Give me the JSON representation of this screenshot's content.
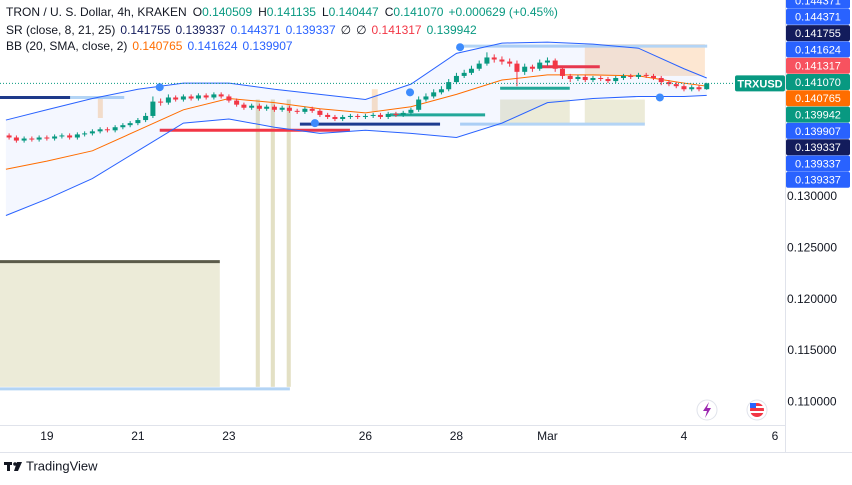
{
  "header": {
    "symbol": "TRON / U. S. Dollar, 4h, KRAKEN",
    "ohlc": [
      {
        "key": "O",
        "value": "0.140509"
      },
      {
        "key": "H",
        "value": "0.141135"
      },
      {
        "key": "L",
        "value": "0.140447"
      },
      {
        "key": "C",
        "value": "0.141070"
      }
    ],
    "change": "+0.000629 (+0.45%)",
    "value_color": "#089981"
  },
  "indicators": [
    {
      "name": "SR (close, 8, 21, 25)",
      "values": [
        {
          "text": "0.141755",
          "color": "#131c5c"
        },
        {
          "text": "0.139337",
          "color": "#131c5c"
        },
        {
          "text": "0.144371",
          "color": "#2962ff"
        },
        {
          "text": "0.139337",
          "color": "#2962ff"
        },
        {
          "text": "∅",
          "color": "#131722"
        },
        {
          "text": "∅",
          "color": "#131722"
        },
        {
          "text": "0.141317",
          "color": "#f23645"
        },
        {
          "text": "0.139942",
          "color": "#089981"
        }
      ]
    },
    {
      "name": "BB (20, SMA, close, 2)",
      "values": [
        {
          "text": "0.140765",
          "color": "#ff6d00"
        },
        {
          "text": "0.141624",
          "color": "#2962ff"
        },
        {
          "text": "0.139907",
          "color": "#2962ff"
        }
      ]
    }
  ],
  "price_tags": [
    {
      "label": "0.144371",
      "color": "#2962ff"
    },
    {
      "label": "0.144371",
      "color": "#2962ff"
    },
    {
      "label": "0.141755",
      "color": "#131c5c"
    },
    {
      "label": "0.141624",
      "color": "#2962ff"
    },
    {
      "label": "0.141317",
      "color": "#f7525f"
    },
    {
      "label": "0.141070",
      "color": "#089981"
    },
    {
      "label": "0.140765",
      "color": "#ff6d00"
    },
    {
      "label": "0.139942",
      "color": "#089981"
    },
    {
      "label": "0.139907",
      "color": "#2962ff"
    },
    {
      "label": "0.139337",
      "color": "#131c5c"
    },
    {
      "label": "0.139337",
      "color": "#2962ff"
    },
    {
      "label": "0.139337",
      "color": "#2962ff"
    }
  ],
  "footer": {
    "brand": "TradingView"
  },
  "chart_data": {
    "type": "candlestick",
    "symbol_label": "TRXUSD",
    "up_color": "#089981",
    "down_color": "#f23645",
    "xlim": [
      17.97,
      35.22
    ],
    "ylim": [
      0.10778,
      0.1492
    ],
    "xticks": [
      19,
      21,
      23,
      26,
      28,
      {
        "value": 30,
        "label": "Mar"
      },
      {
        "value": 33,
        "label": "4"
      },
      {
        "value": 35,
        "label": "6"
      }
    ],
    "yticks": [
      {
        "value": 0.13,
        "label": "0.130000"
      },
      {
        "value": 0.125,
        "label": "0.125000"
      },
      {
        "value": 0.12,
        "label": "0.120000"
      },
      {
        "value": 0.115,
        "label": "0.115000"
      },
      {
        "value": 0.11,
        "label": "0.110000"
      }
    ],
    "grid": false,
    "x": [
      18.17,
      18.33,
      18.5,
      18.67,
      18.83,
      19,
      19.17,
      19.33,
      19.5,
      19.67,
      19.83,
      20,
      20.17,
      20.33,
      20.5,
      20.67,
      20.83,
      21,
      21.17,
      21.33,
      21.5,
      21.67,
      21.83,
      22,
      22.17,
      22.33,
      22.5,
      22.67,
      22.83,
      23,
      23.17,
      23.33,
      23.5,
      23.67,
      23.83,
      24,
      24.17,
      24.33,
      24.5,
      24.67,
      24.83,
      25,
      25.17,
      25.33,
      25.5,
      25.67,
      25.83,
      26,
      26.17,
      26.33,
      26.5,
      26.67,
      26.83,
      27,
      27.17,
      27.33,
      27.5,
      27.67,
      27.83,
      28,
      28.17,
      28.33,
      28.5,
      28.67,
      28.83,
      29,
      29.17,
      29.33,
      29.5,
      29.67,
      29.83,
      30,
      30.17,
      30.33,
      30.5,
      30.67,
      30.83,
      31,
      31.17,
      31.33,
      31.5,
      31.67,
      31.83,
      32,
      32.17,
      32.33,
      32.5,
      32.67,
      32.83,
      33,
      33.17,
      33.33,
      33.5
    ],
    "ohlc": [
      [
        0.136,
        0.1362,
        0.1356,
        0.1358
      ],
      [
        0.1358,
        0.136,
        0.1353,
        0.1355
      ],
      [
        0.1355,
        0.1359,
        0.1353,
        0.1357
      ],
      [
        0.1357,
        0.1359,
        0.1354,
        0.1356
      ],
      [
        0.1356,
        0.136,
        0.1354,
        0.1358
      ],
      [
        0.1358,
        0.136,
        0.1355,
        0.1357
      ],
      [
        0.1357,
        0.1361,
        0.1355,
        0.1359
      ],
      [
        0.1359,
        0.1362,
        0.1357,
        0.136
      ],
      [
        0.136,
        0.1362,
        0.1356,
        0.1358
      ],
      [
        0.1358,
        0.1363,
        0.1356,
        0.1361
      ],
      [
        0.1361,
        0.1364,
        0.1359,
        0.1362
      ],
      [
        0.1362,
        0.1366,
        0.136,
        0.1364
      ],
      [
        0.1364,
        0.1368,
        0.1362,
        0.1366
      ],
      [
        0.1366,
        0.1368,
        0.1363,
        0.1365
      ],
      [
        0.1365,
        0.137,
        0.1363,
        0.1368
      ],
      [
        0.1368,
        0.1372,
        0.1366,
        0.137
      ],
      [
        0.137,
        0.1374,
        0.1368,
        0.1372
      ],
      [
        0.1372,
        0.1377,
        0.137,
        0.1375
      ],
      [
        0.1375,
        0.1382,
        0.1373,
        0.1379
      ],
      [
        0.1379,
        0.1398,
        0.1377,
        0.1393
      ],
      [
        0.1393,
        0.1396,
        0.1389,
        0.1392
      ],
      [
        0.1392,
        0.14,
        0.139,
        0.1397
      ],
      [
        0.1397,
        0.1399,
        0.1393,
        0.1395
      ],
      [
        0.1395,
        0.14,
        0.1393,
        0.1398
      ],
      [
        0.1398,
        0.14,
        0.1394,
        0.1396
      ],
      [
        0.1396,
        0.1401,
        0.1394,
        0.1399
      ],
      [
        0.1399,
        0.1401,
        0.1395,
        0.1397
      ],
      [
        0.1397,
        0.1402,
        0.1395,
        0.14
      ],
      [
        0.14,
        0.1402,
        0.1396,
        0.1398
      ],
      [
        0.1398,
        0.14,
        0.1392,
        0.1394
      ],
      [
        0.1394,
        0.1396,
        0.1388,
        0.139
      ],
      [
        0.139,
        0.1392,
        0.1385,
        0.1387
      ],
      [
        0.1387,
        0.1391,
        0.1385,
        0.1389
      ],
      [
        0.1389,
        0.1391,
        0.1384,
        0.1386
      ],
      [
        0.1386,
        0.139,
        0.1384,
        0.1388
      ],
      [
        0.1388,
        0.139,
        0.1383,
        0.1385
      ],
      [
        0.1385,
        0.1389,
        0.1383,
        0.1387
      ],
      [
        0.1387,
        0.1389,
        0.1382,
        0.1384
      ],
      [
        0.1384,
        0.1386,
        0.1381,
        0.1383
      ],
      [
        0.1383,
        0.1388,
        0.1381,
        0.1386
      ],
      [
        0.1386,
        0.1388,
        0.1382,
        0.1384
      ],
      [
        0.1384,
        0.1386,
        0.1378,
        0.138
      ],
      [
        0.138,
        0.1382,
        0.1376,
        0.1378
      ],
      [
        0.1378,
        0.138,
        0.1374,
        0.1376
      ],
      [
        0.1376,
        0.138,
        0.1374,
        0.1378
      ],
      [
        0.1378,
        0.1381,
        0.1376,
        0.1379
      ],
      [
        0.1379,
        0.1381,
        0.1376,
        0.1378
      ],
      [
        0.1378,
        0.1381,
        0.1376,
        0.1379
      ],
      [
        0.1379,
        0.1382,
        0.1377,
        0.138
      ],
      [
        0.138,
        0.1382,
        0.1376,
        0.1378
      ],
      [
        0.1378,
        0.1383,
        0.1376,
        0.1381
      ],
      [
        0.1381,
        0.1383,
        0.1378,
        0.138
      ],
      [
        0.138,
        0.1384,
        0.1378,
        0.1382
      ],
      [
        0.1382,
        0.1387,
        0.138,
        0.1385
      ],
      [
        0.1385,
        0.1398,
        0.1383,
        0.1395
      ],
      [
        0.1395,
        0.1401,
        0.1393,
        0.1398
      ],
      [
        0.1398,
        0.1405,
        0.1396,
        0.1402
      ],
      [
        0.1402,
        0.1408,
        0.14,
        0.1405
      ],
      [
        0.1405,
        0.1415,
        0.1403,
        0.1412
      ],
      [
        0.1412,
        0.1421,
        0.141,
        0.1418
      ],
      [
        0.1418,
        0.1424,
        0.1416,
        0.1421
      ],
      [
        0.1421,
        0.1428,
        0.1419,
        0.1425
      ],
      [
        0.1425,
        0.1433,
        0.1423,
        0.143
      ],
      [
        0.143,
        0.1441,
        0.1428,
        0.1436
      ],
      [
        0.1436,
        0.1439,
        0.1431,
        0.1434
      ],
      [
        0.1434,
        0.1437,
        0.1429,
        0.1432
      ],
      [
        0.1432,
        0.1435,
        0.1427,
        0.143
      ],
      [
        0.143,
        0.1433,
        0.1408,
        0.1422
      ],
      [
        0.1422,
        0.143,
        0.1419,
        0.1427
      ],
      [
        0.1427,
        0.1429,
        0.1422,
        0.1425
      ],
      [
        0.1425,
        0.1434,
        0.1423,
        0.1431
      ],
      [
        0.1431,
        0.1436,
        0.1428,
        0.1433
      ],
      [
        0.1433,
        0.1435,
        0.1422,
        0.1425
      ],
      [
        0.1425,
        0.1427,
        0.1415,
        0.1418
      ],
      [
        0.1418,
        0.142,
        0.1412,
        0.1415
      ],
      [
        0.1415,
        0.1419,
        0.1413,
        0.1417
      ],
      [
        0.1417,
        0.1419,
        0.1412,
        0.1414
      ],
      [
        0.1414,
        0.1418,
        0.1412,
        0.1416
      ],
      [
        0.1416,
        0.1418,
        0.1413,
        0.1415
      ],
      [
        0.1415,
        0.1417,
        0.1411,
        0.1413
      ],
      [
        0.1413,
        0.1418,
        0.1411,
        0.1416
      ],
      [
        0.1416,
        0.142,
        0.1414,
        0.1418
      ],
      [
        0.1418,
        0.142,
        0.1415,
        0.1417
      ],
      [
        0.1417,
        0.1421,
        0.1415,
        0.1419
      ],
      [
        0.1419,
        0.1421,
        0.1416,
        0.1418
      ],
      [
        0.1418,
        0.142,
        0.1414,
        0.1416
      ],
      [
        0.1416,
        0.1418,
        0.1409,
        0.1412
      ],
      [
        0.1412,
        0.1414,
        0.1408,
        0.141
      ],
      [
        0.141,
        0.1412,
        0.1406,
        0.1408
      ],
      [
        0.1408,
        0.141,
        0.1403,
        0.1405
      ],
      [
        0.1405,
        0.1409,
        0.1403,
        0.1407
      ],
      [
        0.1407,
        0.1409,
        0.1403,
        0.1405
      ],
      [
        0.140509,
        0.141135,
        0.140447,
        0.14107
      ]
    ],
    "bands": {
      "x": [
        18.1,
        19,
        20,
        21,
        22,
        23,
        24,
        25,
        26,
        27,
        28,
        29,
        30,
        31,
        32,
        33,
        33.5
      ],
      "upper": [
        0.1375,
        0.1385,
        0.1396,
        0.1405,
        0.1411,
        0.1411,
        0.1405,
        0.14,
        0.1395,
        0.141,
        0.144,
        0.145,
        0.1451,
        0.1449,
        0.1445,
        0.1425,
        0.1416
      ],
      "basis": [
        0.1327,
        0.1335,
        0.1345,
        0.1365,
        0.1385,
        0.1396,
        0.1392,
        0.1386,
        0.1382,
        0.1388,
        0.14,
        0.1414,
        0.1419,
        0.1419,
        0.1418,
        0.1411,
        0.1408
      ],
      "lower": [
        0.1282,
        0.1298,
        0.1318,
        0.1345,
        0.1372,
        0.1376,
        0.1368,
        0.1362,
        0.1365,
        0.1362,
        0.1358,
        0.1372,
        0.1392,
        0.1396,
        0.1398,
        0.1398,
        0.1399
      ],
      "line_color": "#2962ff",
      "basis_color": "#ff6d00",
      "fill": "#2962ff"
    },
    "zones": [
      {
        "x": [
          17.97,
          22.8
        ],
        "price": [
          0.1115,
          0.1237
        ],
        "color": "#ecebd8"
      },
      {
        "x": [
          23.59,
          23.68
        ],
        "price": [
          0.1115,
          0.1395
        ],
        "color": "#e3e0c4"
      },
      {
        "x": [
          23.92,
          24.01
        ],
        "price": [
          0.1115,
          0.1395
        ],
        "color": "#e3e0c4"
      },
      {
        "x": [
          24.27,
          24.36
        ],
        "price": [
          0.1115,
          0.1395
        ],
        "color": "#e3e0c4"
      },
      {
        "x": [
          20.12,
          20.23
        ],
        "price": [
          0.1377,
          0.1397
        ],
        "color": "#fde3c8"
      },
      {
        "x": [
          26.14,
          26.27
        ],
        "price": [
          0.1383,
          0.1405
        ],
        "color": "#fde3c8"
      },
      {
        "x": [
          30.82,
          33.46
        ],
        "price": [
          0.1418,
          0.1449
        ],
        "color": "#fde7d2"
      },
      {
        "x": [
          28.96,
          30.49
        ],
        "price": [
          0.1371,
          0.1395
        ],
        "color": "#ecebd8"
      },
      {
        "x": [
          30.82,
          32.14
        ],
        "price": [
          0.1371,
          0.1395
        ],
        "color": "#ecebd8"
      }
    ],
    "levels": [
      {
        "x": [
          17.97,
          24.34
        ],
        "price": 0.1113,
        "color": "#b3d4f5"
      },
      {
        "x": [
          17.97,
          22.8
        ],
        "price": 0.1237,
        "color": "#5b5b4a"
      },
      {
        "x": [
          17.97,
          20.7
        ],
        "price": 0.1397,
        "color": "#b3d4f5"
      },
      {
        "x": [
          17.97,
          19.51
        ],
        "price": 0.1397,
        "color": "#1e3a8a"
      },
      {
        "x": [
          21.48,
          25.66
        ],
        "price": 0.1365,
        "color": "#f23645"
      },
      {
        "x": [
          24.56,
          27.64
        ],
        "price": 0.1371,
        "color": "#1e3a8a"
      },
      {
        "x": [
          26.54,
          28.63
        ],
        "price": 0.138,
        "color": "#22ab94"
      },
      {
        "x": [
          28.08,
          33.51
        ],
        "price": 0.1447,
        "color": "#b3d4f5"
      },
      {
        "x": [
          28.08,
          32.14
        ],
        "price": 0.1371,
        "color": "#b3d4f5"
      },
      {
        "x": [
          28.96,
          30.49
        ],
        "price": 0.1406,
        "color": "#22ab94"
      },
      {
        "x": [
          29.84,
          31.15
        ],
        "price": 0.1427,
        "color": "#f23645"
      }
    ],
    "pivots": {
      "x": [
        21.48,
        24.89,
        26.98,
        28.08,
        32.47
      ],
      "values": [
        0.1407,
        0.1372,
        0.1402,
        0.1446,
        0.1397
      ],
      "color": "#3d8bfd"
    }
  }
}
